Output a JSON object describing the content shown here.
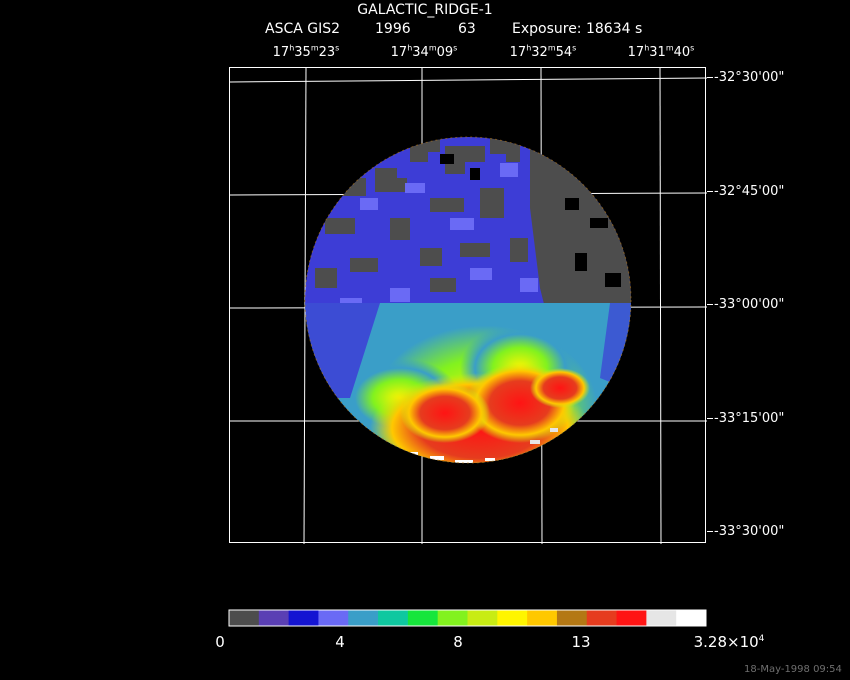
{
  "header": {
    "title": "GALACTIC_RIDGE-1",
    "instrument": "ASCA GIS2",
    "year": "1996",
    "sequence": "63",
    "exposure": "Exposure: 18634 s"
  },
  "ra_labels": [
    {
      "h": "17",
      "m": "35",
      "s": "23"
    },
    {
      "h": "17",
      "m": "34",
      "s": "09"
    },
    {
      "h": "17",
      "m": "32",
      "s": "54"
    },
    {
      "h": "17",
      "m": "31",
      "s": "40"
    }
  ],
  "dec_labels": [
    "-32°30'00\"",
    "-32°45'00\"",
    "-33°00'00\"",
    "-33°15'00\"",
    "-33°30'00\""
  ],
  "colorbar": {
    "colors": [
      "#4d4d4d",
      "#5a3fb4",
      "#1414d2",
      "#6a6af5",
      "#3a9ec8",
      "#0fc8a0",
      "#16e63c",
      "#82f21e",
      "#c8ec14",
      "#fff500",
      "#ffc800",
      "#b47814",
      "#e63c1e",
      "#ff1414",
      "#e6e6e6",
      "#ffffff"
    ],
    "tick_labels": [
      "0",
      "4",
      "8",
      "13"
    ],
    "max_label": {
      "mantissa": "3.28×10",
      "exponent": "4"
    }
  },
  "footer": {
    "timestamp": "18-May-1998 09:54"
  },
  "image_palette": {
    "background": "#000000",
    "grid": "#ffffff",
    "low": "#4d4d4d",
    "field": "#3d3dd6",
    "mid": "#6a6af5",
    "warm": "#c8ec14",
    "hot": "#e63c1e",
    "peak": "#ffffff"
  }
}
